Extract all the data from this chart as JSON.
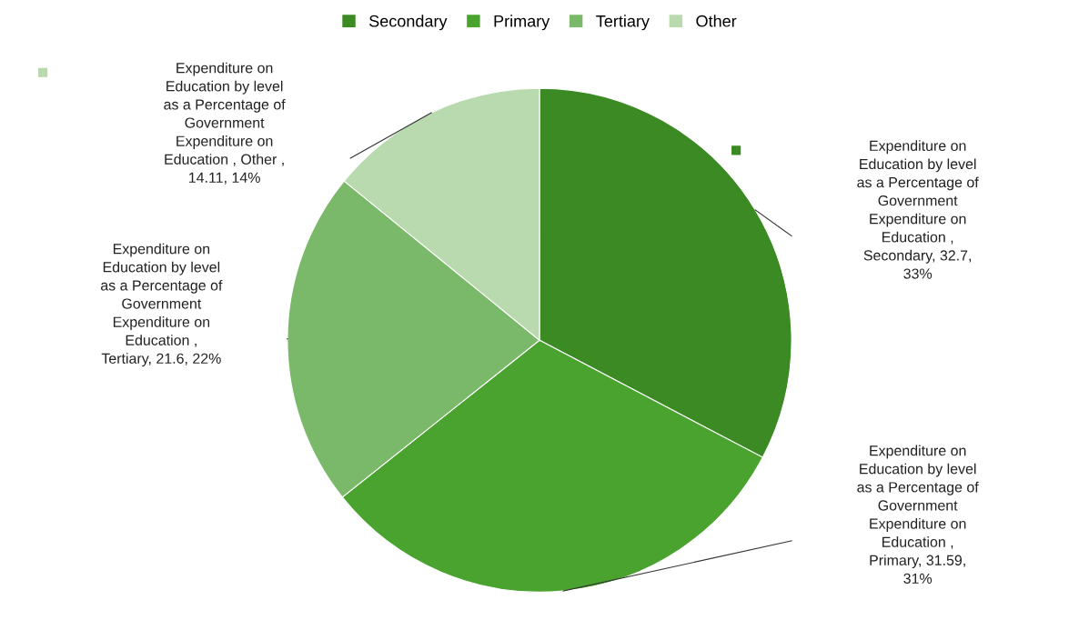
{
  "chart_data": {
    "type": "pie",
    "categories": [
      "Secondary",
      "Primary",
      "Tertiary",
      "Other"
    ],
    "values": [
      32.7,
      31.59,
      21.6,
      14.11
    ],
    "colors": [
      "#3b8a23",
      "#4aa32e",
      "#7ab96a",
      "#b9d9ae"
    ],
    "value_labels": [
      "Expenditure on\nEducation by level\nas a Percentage of\nGovernment\nExpenditure on\nEducation ,\nSecondary, 32.7,\n33%",
      "Expenditure on\nEducation by level\nas a Percentage of\nGovernment\nExpenditure on\nEducation ,\nPrimary, 31.59,\n31%",
      "Expenditure on\nEducation by level\nas a Percentage of\nGovernment\nExpenditure on\nEducation ,\nTertiary, 21.6, 22%",
      "Expenditure on\nEducation by level\nas a Percentage of\nGovernment\nExpenditure on\nEducation , Other ,\n14.11, 14%"
    ],
    "legend": "top"
  }
}
